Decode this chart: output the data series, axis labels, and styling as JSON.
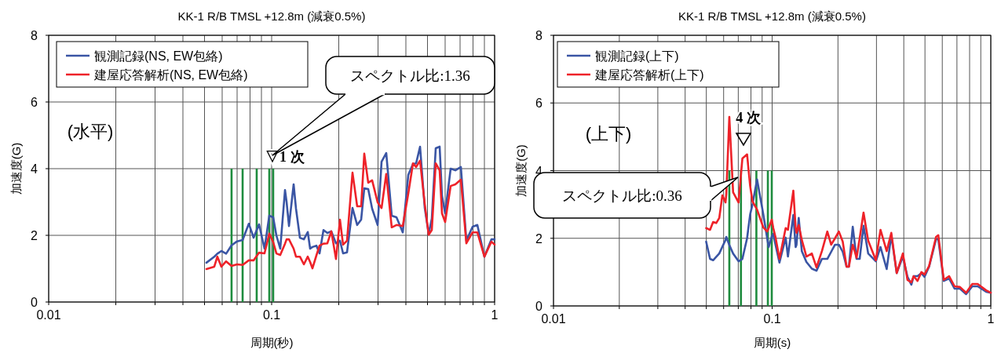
{
  "chart_data": [
    {
      "type": "line",
      "title": "KK-1 R/B TMSL +12.8m (減衰0.5%)",
      "xlabel": "周期(秒)",
      "ylabel": "加速度(G)",
      "log": "x",
      "grid": true,
      "legend": "top left",
      "xlim": [
        0.01,
        1
      ],
      "ylim": [
        0,
        8
      ],
      "xticks": [
        0.01,
        {
          "value": 0.02,
          "label": null
        },
        {
          "value": 0.03,
          "label": null
        },
        {
          "value": 0.04,
          "label": null
        },
        {
          "value": 0.05,
          "label": null
        },
        {
          "value": 0.06,
          "label": null
        },
        {
          "value": 0.07,
          "label": null
        },
        {
          "value": 0.08,
          "label": null
        },
        {
          "value": 0.09,
          "label": null
        },
        0.1,
        {
          "value": 0.2,
          "label": null
        },
        {
          "value": 0.3,
          "label": null
        },
        {
          "value": 0.4,
          "label": null
        },
        {
          "value": 0.5,
          "label": null
        },
        {
          "value": 0.6,
          "label": null
        },
        {
          "value": 0.7,
          "label": null
        },
        {
          "value": 0.8,
          "label": null
        },
        {
          "value": 0.9,
          "label": null
        },
        1
      ],
      "yticks": [
        0,
        2,
        4,
        6,
        8
      ],
      "x": [
        0.051,
        0.0553,
        0.0571,
        0.0595,
        0.0625,
        0.0661,
        0.07,
        0.0741,
        0.079,
        0.083,
        0.0878,
        0.0929,
        0.0976,
        0.1016,
        0.105,
        0.1093,
        0.1148,
        0.1167,
        0.1196,
        0.1255,
        0.1286,
        0.1339,
        0.1395,
        0.1452,
        0.1488,
        0.1524,
        0.1588,
        0.164,
        0.1708,
        0.1778,
        0.1852,
        0.1944,
        0.2025,
        0.2091,
        0.2178,
        0.2305,
        0.2419,
        0.252,
        0.2603,
        0.2711,
        0.2823,
        0.2988,
        0.3112,
        0.3266,
        0.3456,
        0.363,
        0.3873,
        0.41,
        0.4304,
        0.4446,
        0.463,
        0.486,
        0.5061,
        0.5228,
        0.5444,
        0.5669,
        0.5808,
        0.6,
        0.6351,
        0.6667,
        0.7058,
        0.7468,
        0.7968,
        0.8367,
        0.9,
        0.968,
        1.0
      ],
      "series": [
        {
          "name": "観測記録(NS, EW包絡)",
          "color": "#3a55a4",
          "values": [
            1.18,
            1.36,
            1.45,
            1.53,
            1.45,
            1.7,
            1.82,
            1.86,
            2.35,
            1.93,
            2.33,
            1.6,
            2.59,
            2.54,
            2.0,
            1.6,
            3.36,
            3.0,
            2.28,
            3.53,
            2.8,
            1.93,
            1.88,
            2.1,
            1.6,
            1.65,
            1.69,
            1.46,
            2.16,
            2.07,
            2.12,
            1.76,
            1.84,
            1.46,
            1.49,
            2.82,
            2.31,
            2.47,
            3.41,
            3.39,
            2.8,
            2.31,
            4.21,
            4.47,
            2.59,
            2.54,
            2.09,
            3.81,
            4.14,
            4.16,
            4.66,
            2.82,
            2.05,
            2.5,
            4.61,
            4.66,
            3.18,
            2.66,
            4.0,
            3.95,
            4.05,
            1.84,
            2.26,
            2.31,
            1.36,
            1.88,
            1.88
          ]
        },
        {
          "name": "建屋応答解析(NS, EW包絡)",
          "color": "#ee2229",
          "values": [
            0.99,
            1.06,
            1.36,
            1.06,
            1.22,
            1.08,
            1.13,
            1.11,
            1.25,
            1.25,
            1.48,
            1.46,
            2.05,
            1.8,
            1.46,
            1.41,
            1.75,
            1.88,
            1.88,
            1.6,
            1.36,
            1.36,
            1.13,
            1.36,
            1.2,
            1.01,
            1.4,
            1.69,
            1.75,
            1.76,
            2.12,
            1.29,
            2.47,
            1.72,
            1.84,
            3.88,
            2.87,
            2.87,
            4.45,
            3.58,
            3.65,
            2.99,
            2.82,
            3.84,
            2.24,
            2.31,
            2.28,
            3.25,
            4.16,
            4.05,
            4.24,
            2.94,
            2.02,
            2.16,
            4.16,
            3.95,
            2.66,
            2.4,
            3.48,
            3.53,
            3.67,
            1.76,
            2.09,
            2.09,
            1.36,
            1.81,
            1.72
          ]
        },
        {
          "type": "bar",
          "color": "#1e8c3e",
          "x": [
            0.0661,
            0.0741,
            0.0857,
            0.0976,
            0.1016
          ],
          "values": [
            4,
            4,
            4,
            4,
            4
          ]
        }
      ],
      "annotations": [
        "(水平)",
        "▽1 次",
        "スペクトル比:1.36"
      ]
    },
    {
      "type": "line",
      "title": "KK-1 R/B TMSL +12.8m (減衰0.5%)",
      "xlabel": "周期(s)",
      "ylabel": "加速度(G)",
      "log": "x",
      "grid": true,
      "legend": "top left",
      "xlim": [
        0.01,
        1
      ],
      "ylim": [
        0,
        8
      ],
      "xticks": [
        0.01,
        {
          "value": 0.02,
          "label": null
        },
        {
          "value": 0.03,
          "label": null
        },
        {
          "value": 0.04,
          "label": null
        },
        {
          "value": 0.05,
          "label": null
        },
        {
          "value": 0.06,
          "label": null
        },
        {
          "value": 0.07,
          "label": null
        },
        {
          "value": 0.08,
          "label": null
        },
        {
          "value": 0.09,
          "label": null
        },
        0.1,
        {
          "value": 0.2,
          "label": null
        },
        {
          "value": 0.3,
          "label": null
        },
        {
          "value": 0.4,
          "label": null
        },
        {
          "value": 0.5,
          "label": null
        },
        {
          "value": 0.6,
          "label": null
        },
        {
          "value": 0.7,
          "label": null
        },
        {
          "value": 0.8,
          "label": null
        },
        {
          "value": 0.9,
          "label": null
        },
        1
      ],
      "yticks": [
        0,
        2,
        4,
        6,
        8
      ],
      "x": [
        0.0499,
        0.052,
        0.0537,
        0.0555,
        0.0573,
        0.0592,
        0.0612,
        0.0617,
        0.0637,
        0.0663,
        0.0702,
        0.0731,
        0.0768,
        0.0793,
        0.0813,
        0.0853,
        0.0911,
        0.0949,
        0.0964,
        0.0996,
        0.1012,
        0.1037,
        0.108,
        0.1153,
        0.1181,
        0.125,
        0.1281,
        0.1292,
        0.1323,
        0.1367,
        0.1435,
        0.1519,
        0.1595,
        0.1689,
        0.1788,
        0.1862,
        0.1939,
        0.2019,
        0.2103,
        0.219,
        0.2244,
        0.2337,
        0.2433,
        0.2514,
        0.2618,
        0.2749,
        0.2981,
        0.313,
        0.3341,
        0.3508,
        0.3713,
        0.3962,
        0.4159,
        0.4332,
        0.4439,
        0.4624,
        0.4815,
        0.4974,
        0.5222,
        0.5618,
        0.5754,
        0.6093,
        0.645,
        0.6828,
        0.7229,
        0.7712,
        0.8228,
        0.871,
        0.9524,
        1.0
      ],
      "series": [
        {
          "name": "観測記録(上下)",
          "color": "#3a55a4",
          "values": [
            1.9,
            1.39,
            1.35,
            1.45,
            1.55,
            1.75,
            1.95,
            2.04,
            1.8,
            1.55,
            1.32,
            1.39,
            2.0,
            2.7,
            3.0,
            3.74,
            2.71,
            2.0,
            1.74,
            2.05,
            2.13,
            1.8,
            1.28,
            2.02,
            1.46,
            2.69,
            1.74,
            1.8,
            2.6,
            1.62,
            1.3,
            1.1,
            1.04,
            1.39,
            1.39,
            1.6,
            1.81,
            1.81,
            1.6,
            1.16,
            1.16,
            2.34,
            1.39,
            1.39,
            2.37,
            1.55,
            1.32,
            1.74,
            1.09,
            2.09,
            0.97,
            1.46,
            0.86,
            0.63,
            0.88,
            0.88,
            0.97,
            0.86,
            1.16,
            1.97,
            1.97,
            0.74,
            0.81,
            0.51,
            0.51,
            0.35,
            0.58,
            0.58,
            0.42,
            0.39
          ]
        },
        {
          "name": "建屋応答解析(上下)",
          "color": "#ee2229",
          "values": [
            2.3,
            2.25,
            2.48,
            2.45,
            2.6,
            3.27,
            3.06,
            3.3,
            5.59,
            3.36,
            3.06,
            4.36,
            4.48,
            3.55,
            3.09,
            2.85,
            2.32,
            2.2,
            2.3,
            2.55,
            2.3,
            2.02,
            1.39,
            2.3,
            2.25,
            3.41,
            2.3,
            2.16,
            2.39,
            1.95,
            1.46,
            1.55,
            1.14,
            1.62,
            2.2,
            1.81,
            2.0,
            2.2,
            1.9,
            1.16,
            1.16,
            1.81,
            1.42,
            2.0,
            2.76,
            1.93,
            1.35,
            2.25,
            1.62,
            2.16,
            0.97,
            1.55,
            0.77,
            0.7,
            0.88,
            0.74,
            1.0,
            0.93,
            1.18,
            2.04,
            2.09,
            0.77,
            0.88,
            0.58,
            0.56,
            0.39,
            0.65,
            0.65,
            0.46,
            0.39
          ]
        },
        {
          "type": "bar",
          "color": "#1e8c3e",
          "x": [
            0.0637,
            0.072,
            0.0847,
            0.0956,
            0.0996
          ],
          "values": [
            4,
            4,
            4,
            4,
            4
          ]
        }
      ],
      "annotations": [
        "(上下)",
        "4 次",
        "スペクトル比:0.36"
      ]
    }
  ]
}
